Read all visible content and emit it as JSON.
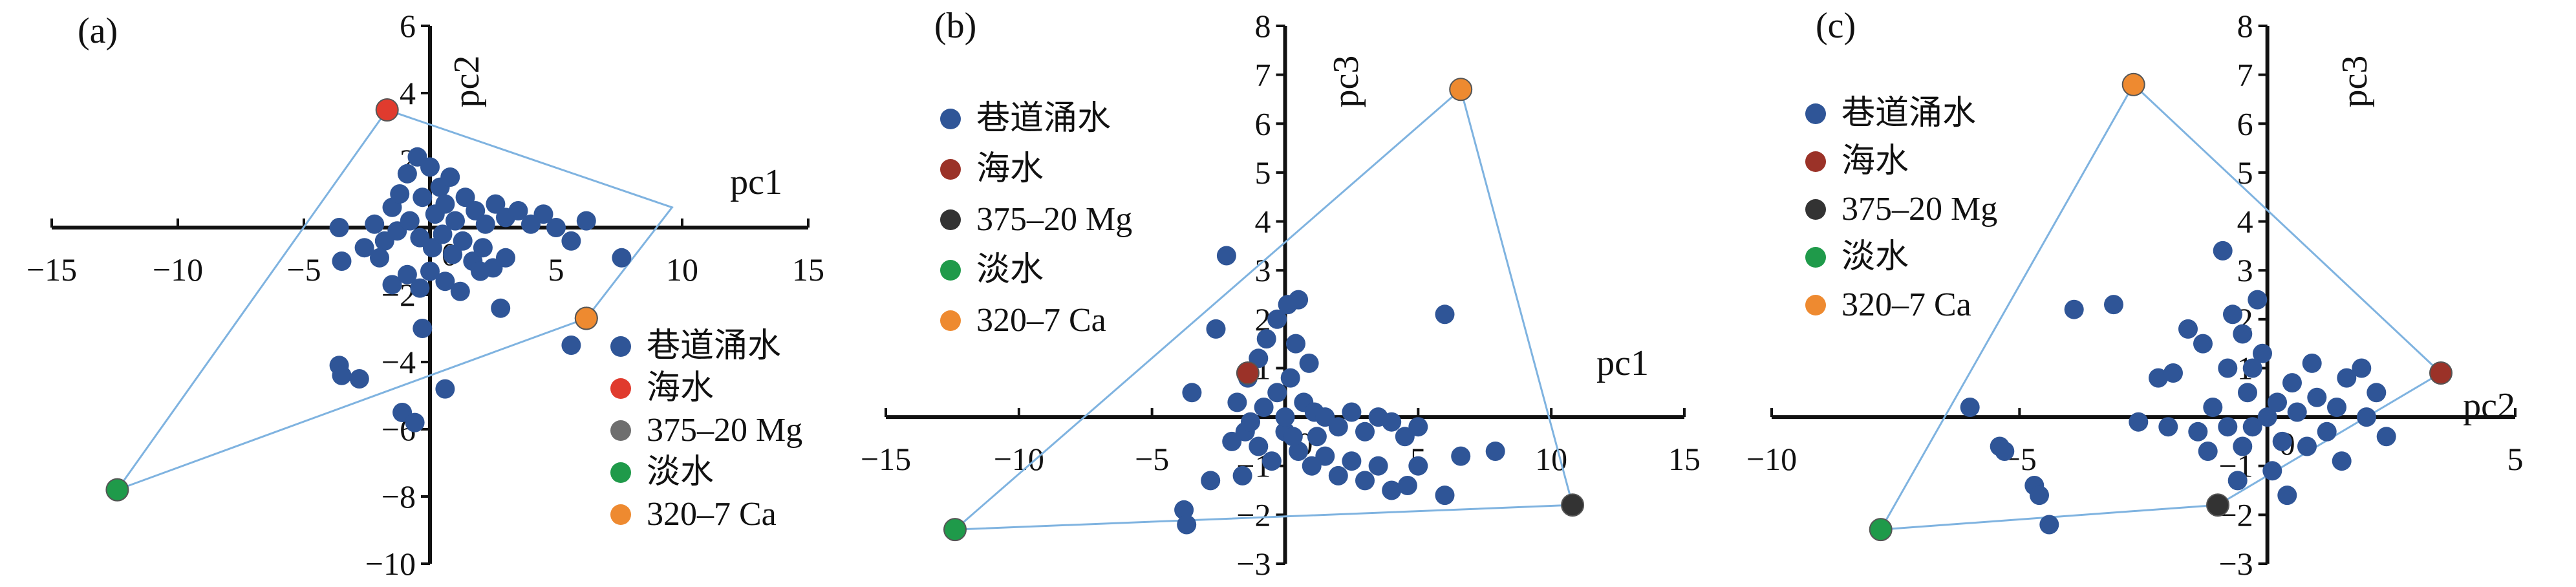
{
  "colors": {
    "roadway_water": "#2f5597",
    "seawater_a": "#e03b2e",
    "seawater": "#9b3228",
    "mg_a": "#6e6e6e",
    "mg": "#333333",
    "fresh": "#1f9a4a",
    "ca": "#ee8a30",
    "hull": "#7fb3e0"
  },
  "chart_data": [
    {
      "type": "scatter",
      "panel_label": "(a)",
      "xlabel": "pc1",
      "ylabel": "pc2",
      "xlim": [
        -15,
        15
      ],
      "ylim": [
        -10,
        6
      ],
      "xticks": [
        "-15",
        "-10",
        "-5",
        "0",
        "5",
        "10",
        "15"
      ],
      "yticks": [
        "-10",
        "-8",
        "-6",
        "-4",
        "-2",
        "0",
        "2",
        "4",
        "6"
      ],
      "legend": [
        "巷道涌水",
        "海水",
        "375-20 Mg",
        "淡水",
        "320-7 Ca"
      ],
      "legend_position": "bottom-right",
      "hull": [
        [
          -12.4,
          -7.8
        ],
        [
          -1.7,
          3.5
        ],
        [
          9.6,
          0.6
        ],
        [
          6.2,
          -2.7
        ]
      ],
      "series": [
        {
          "name": "巷道涌水",
          "points": [
            [
              -1.5,
              0.6
            ],
            [
              -1.2,
              1.0
            ],
            [
              -0.9,
              1.6
            ],
            [
              -0.5,
              2.1
            ],
            [
              0,
              1.8
            ],
            [
              0.4,
              1.2
            ],
            [
              0.8,
              1.5
            ],
            [
              -0.3,
              0.9
            ],
            [
              0.2,
              0.4
            ],
            [
              0.6,
              0.7
            ],
            [
              1.0,
              0.2
            ],
            [
              1.4,
              0.9
            ],
            [
              1.8,
              0.5
            ],
            [
              2.2,
              0.1
            ],
            [
              2.6,
              0.7
            ],
            [
              3.0,
              0.3
            ],
            [
              3.5,
              0.5
            ],
            [
              4.0,
              0.1
            ],
            [
              4.5,
              0.4
            ],
            [
              -2.2,
              0.1
            ],
            [
              -1.8,
              -0.4
            ],
            [
              -1.3,
              -0.1
            ],
            [
              -0.8,
              0.2
            ],
            [
              -0.4,
              -0.3
            ],
            [
              0.1,
              -0.6
            ],
            [
              0.5,
              -0.2
            ],
            [
              0.9,
              -0.8
            ],
            [
              1.3,
              -0.4
            ],
            [
              1.7,
              -1.0
            ],
            [
              2.1,
              -0.6
            ],
            [
              2.5,
              -1.2
            ],
            [
              3.0,
              -0.9
            ],
            [
              -3.6,
              0.0
            ],
            [
              -3.5,
              -1.0
            ],
            [
              -2.6,
              -0.6
            ],
            [
              -2.0,
              -0.9
            ],
            [
              -1.5,
              -1.7
            ],
            [
              -0.9,
              -1.4
            ],
            [
              -0.4,
              -1.8
            ],
            [
              0.0,
              -1.3
            ],
            [
              0.6,
              -1.6
            ],
            [
              1.2,
              -1.9
            ],
            [
              2.0,
              -1.3
            ],
            [
              5.0,
              0.0
            ],
            [
              5.6,
              -0.4
            ],
            [
              6.2,
              0.2
            ],
            [
              7.6,
              -0.9
            ],
            [
              -0.3,
              -3.0
            ],
            [
              -3.6,
              -4.1
            ],
            [
              -3.5,
              -4.4
            ],
            [
              -2.8,
              -4.5
            ],
            [
              -1.1,
              -5.5
            ],
            [
              -0.6,
              -5.8
            ],
            [
              0.6,
              -4.8
            ],
            [
              2.8,
              -2.4
            ],
            [
              5.6,
              -3.5
            ]
          ]
        },
        {
          "name": "海水",
          "points": [
            [
              -1.7,
              3.5
            ]
          ]
        },
        {
          "name": "375-20 Mg",
          "points": [
            [
              6.2,
              -2.7
            ]
          ]
        },
        {
          "name": "淡水",
          "points": [
            [
              -12.4,
              -7.8
            ]
          ]
        },
        {
          "name": "320-7 Ca",
          "points": [
            [
              6.2,
              -2.7
            ]
          ]
        }
      ]
    },
    {
      "type": "scatter",
      "panel_label": "(b)",
      "xlabel": "pc1",
      "ylabel": "pc3",
      "xlim": [
        -15,
        15
      ],
      "ylim": [
        -3,
        8
      ],
      "xticks": [
        "-15",
        "-10",
        "-5",
        "0",
        "5",
        "10",
        "15"
      ],
      "yticks": [
        "-3",
        "-2",
        "-1",
        "0",
        "1",
        "2",
        "3",
        "4",
        "5",
        "6",
        "7",
        "8"
      ],
      "legend": [
        "巷道涌水",
        "海水",
        "375-20 Mg",
        "淡水",
        "320-7 Ca"
      ],
      "legend_position": "top-left",
      "hull": [
        [
          -12.4,
          -2.3
        ],
        [
          6.6,
          6.7
        ],
        [
          10.8,
          -1.8
        ]
      ],
      "series": [
        {
          "name": "巷道涌水",
          "points": [
            [
              -2.2,
              3.3
            ],
            [
              -2.6,
              1.8
            ],
            [
              -3.5,
              0.5
            ],
            [
              -2.0,
              -0.5
            ],
            [
              -1.8,
              0.3
            ],
            [
              -1.4,
              0.8
            ],
            [
              -1.0,
              1.2
            ],
            [
              -0.7,
              1.6
            ],
            [
              -0.3,
              2.0
            ],
            [
              0.1,
              2.3
            ],
            [
              0.5,
              2.4
            ],
            [
              0.4,
              1.5
            ],
            [
              0.9,
              1.1
            ],
            [
              0.2,
              0.8
            ],
            [
              -0.3,
              0.5
            ],
            [
              0.7,
              0.3
            ],
            [
              1.1,
              0.1
            ],
            [
              1.5,
              0.0
            ],
            [
              2.0,
              -0.2
            ],
            [
              2.5,
              0.1
            ],
            [
              3.0,
              -0.3
            ],
            [
              3.5,
              0.0
            ],
            [
              4.0,
              -0.1
            ],
            [
              4.5,
              -0.4
            ],
            [
              5.0,
              -0.2
            ],
            [
              6.0,
              2.1
            ],
            [
              6.6,
              -0.8
            ],
            [
              7.9,
              -0.7
            ],
            [
              -1.5,
              -0.3
            ],
            [
              -1.0,
              -0.6
            ],
            [
              -0.5,
              -0.9
            ],
            [
              0.0,
              -0.3
            ],
            [
              0.5,
              -0.7
            ],
            [
              1.0,
              -1.0
            ],
            [
              1.5,
              -0.8
            ],
            [
              2.0,
              -1.2
            ],
            [
              2.5,
              -0.9
            ],
            [
              3.0,
              -1.3
            ],
            [
              3.5,
              -1.0
            ],
            [
              4.0,
              -1.5
            ],
            [
              4.6,
              -1.4
            ],
            [
              5.0,
              -1.0
            ],
            [
              6.0,
              -1.6
            ],
            [
              -3.8,
              -1.9
            ],
            [
              -3.7,
              -2.2
            ],
            [
              -2.8,
              -1.3
            ],
            [
              -1.6,
              -1.2
            ],
            [
              -1.3,
              -0.1
            ],
            [
              -0.8,
              0.2
            ],
            [
              0.0,
              0.0
            ],
            [
              0.3,
              -0.4
            ],
            [
              1.2,
              -0.4
            ]
          ]
        },
        {
          "name": "海水",
          "points": [
            [
              -1.4,
              0.9
            ]
          ]
        },
        {
          "name": "375-20 Mg",
          "points": [
            [
              10.8,
              -1.8
            ]
          ]
        },
        {
          "name": "淡水",
          "points": [
            [
              -12.4,
              -2.3
            ]
          ]
        },
        {
          "name": "320-7 Ca",
          "points": [
            [
              6.6,
              6.7
            ]
          ]
        }
      ]
    },
    {
      "type": "scatter",
      "panel_label": "(c)",
      "xlabel": "pc2",
      "ylabel": "pc3",
      "xlim": [
        -10,
        5
      ],
      "ylim": [
        -3,
        8
      ],
      "xticks": [
        "-10",
        "-5",
        "0",
        "5"
      ],
      "yticks": [
        "-3",
        "-2",
        "-1",
        "0",
        "1",
        "2",
        "3",
        "4",
        "5",
        "6",
        "7",
        "8"
      ],
      "legend": [
        "巷道涌水",
        "海水",
        "375-20 Mg",
        "淡水",
        "320-7 Ca"
      ],
      "legend_position": "top-left",
      "hull": [
        [
          -7.8,
          -2.3
        ],
        [
          -2.7,
          6.8
        ],
        [
          3.5,
          0.9
        ],
        [
          -1.0,
          -1.8
        ]
      ],
      "series": [
        {
          "name": "巷道涌水",
          "points": [
            [
              -6.0,
              0.2
            ],
            [
              -5.4,
              -0.6
            ],
            [
              -5.3,
              -0.7
            ],
            [
              -4.7,
              -1.4
            ],
            [
              -4.6,
              -1.6
            ],
            [
              -4.4,
              -2.2
            ],
            [
              -3.9,
              2.2
            ],
            [
              -3.1,
              2.3
            ],
            [
              -2.6,
              -0.1
            ],
            [
              -2.2,
              0.8
            ],
            [
              -1.9,
              0.9
            ],
            [
              -1.4,
              -0.3
            ],
            [
              -1.3,
              1.5
            ],
            [
              -1.2,
              -0.7
            ],
            [
              -1.1,
              0.2
            ],
            [
              -0.9,
              3.4
            ],
            [
              -0.8,
              1.0
            ],
            [
              -0.7,
              2.1
            ],
            [
              -0.5,
              1.7
            ],
            [
              -0.4,
              0.5
            ],
            [
              -0.3,
              -0.2
            ],
            [
              -0.2,
              2.4
            ],
            [
              -0.1,
              1.3
            ],
            [
              0,
              0.0
            ],
            [
              0.2,
              0.3
            ],
            [
              0.3,
              -0.5
            ],
            [
              0.5,
              0.7
            ],
            [
              0.6,
              0.1
            ],
            [
              0.8,
              -0.6
            ],
            [
              0.9,
              1.1
            ],
            [
              1.0,
              0.4
            ],
            [
              1.2,
              -0.3
            ],
            [
              1.4,
              0.2
            ],
            [
              1.5,
              -0.9
            ],
            [
              1.6,
              0.8
            ],
            [
              1.9,
              1.0
            ],
            [
              2.0,
              0.0
            ],
            [
              2.2,
              0.5
            ],
            [
              2.4,
              -0.4
            ],
            [
              -0.5,
              -0.6
            ],
            [
              -0.8,
              -0.2
            ],
            [
              0.1,
              -1.1
            ],
            [
              0.4,
              -1.6
            ],
            [
              -0.6,
              -1.3
            ],
            [
              -2.0,
              -0.2
            ],
            [
              -1.6,
              1.8
            ],
            [
              -0.3,
              1.0
            ]
          ]
        },
        {
          "name": "海水",
          "points": [
            [
              3.5,
              0.9
            ]
          ]
        },
        {
          "name": "375-20 Mg",
          "points": [
            [
              -1.0,
              -1.8
            ]
          ]
        },
        {
          "name": "淡水",
          "points": [
            [
              -7.8,
              -2.3
            ]
          ]
        },
        {
          "name": "320-7 Ca",
          "points": [
            [
              -2.7,
              6.8
            ]
          ]
        }
      ]
    }
  ]
}
